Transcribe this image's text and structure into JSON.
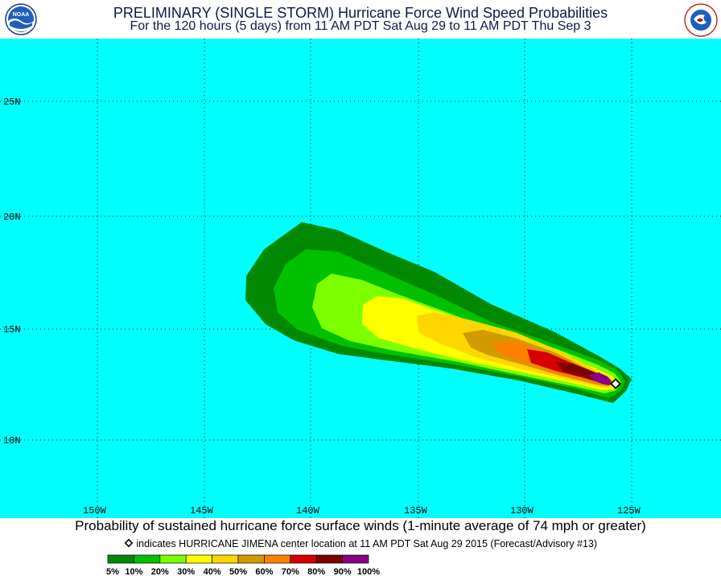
{
  "header": {
    "title": "PRELIMINARY (SINGLE STORM) Hurricane Force Wind Speed Probabilities",
    "subtitle": "For the 120 hours (5 days) from 11 AM PDT Sat Aug 29 to 11 AM PDT Thu Sep 3",
    "left_logo_text": "NOAA",
    "right_logo_text": "NATIONAL WEATHER SERVICE"
  },
  "map": {
    "ocean_color": "#00ffff",
    "lat_labels": [
      "25N",
      "20N",
      "15N",
      "10N"
    ],
    "lon_labels": [
      "150W",
      "145W",
      "140W",
      "135W",
      "130W",
      "125W"
    ],
    "storm_marker": "HURRICANE JIMENA"
  },
  "footer": {
    "caption": "Probability of sustained hurricane force surface winds (1-minute average of 74 mph or greater)",
    "marker_note": "indicates HURRICANE JIMENA center location at 11 AM PDT Sat Aug 29 2015 (Forecast/Advisory #13)"
  },
  "legend": {
    "colors": [
      "#008800",
      "#00c000",
      "#7cff00",
      "#ffff00",
      "#ffd700",
      "#d19a00",
      "#ff8000",
      "#d40000",
      "#7c0000",
      "#880088"
    ],
    "labels": [
      "5%",
      "10%",
      "20%",
      "30%",
      "40%",
      "50%",
      "60%",
      "70%",
      "80%",
      "90%",
      "100%"
    ]
  }
}
